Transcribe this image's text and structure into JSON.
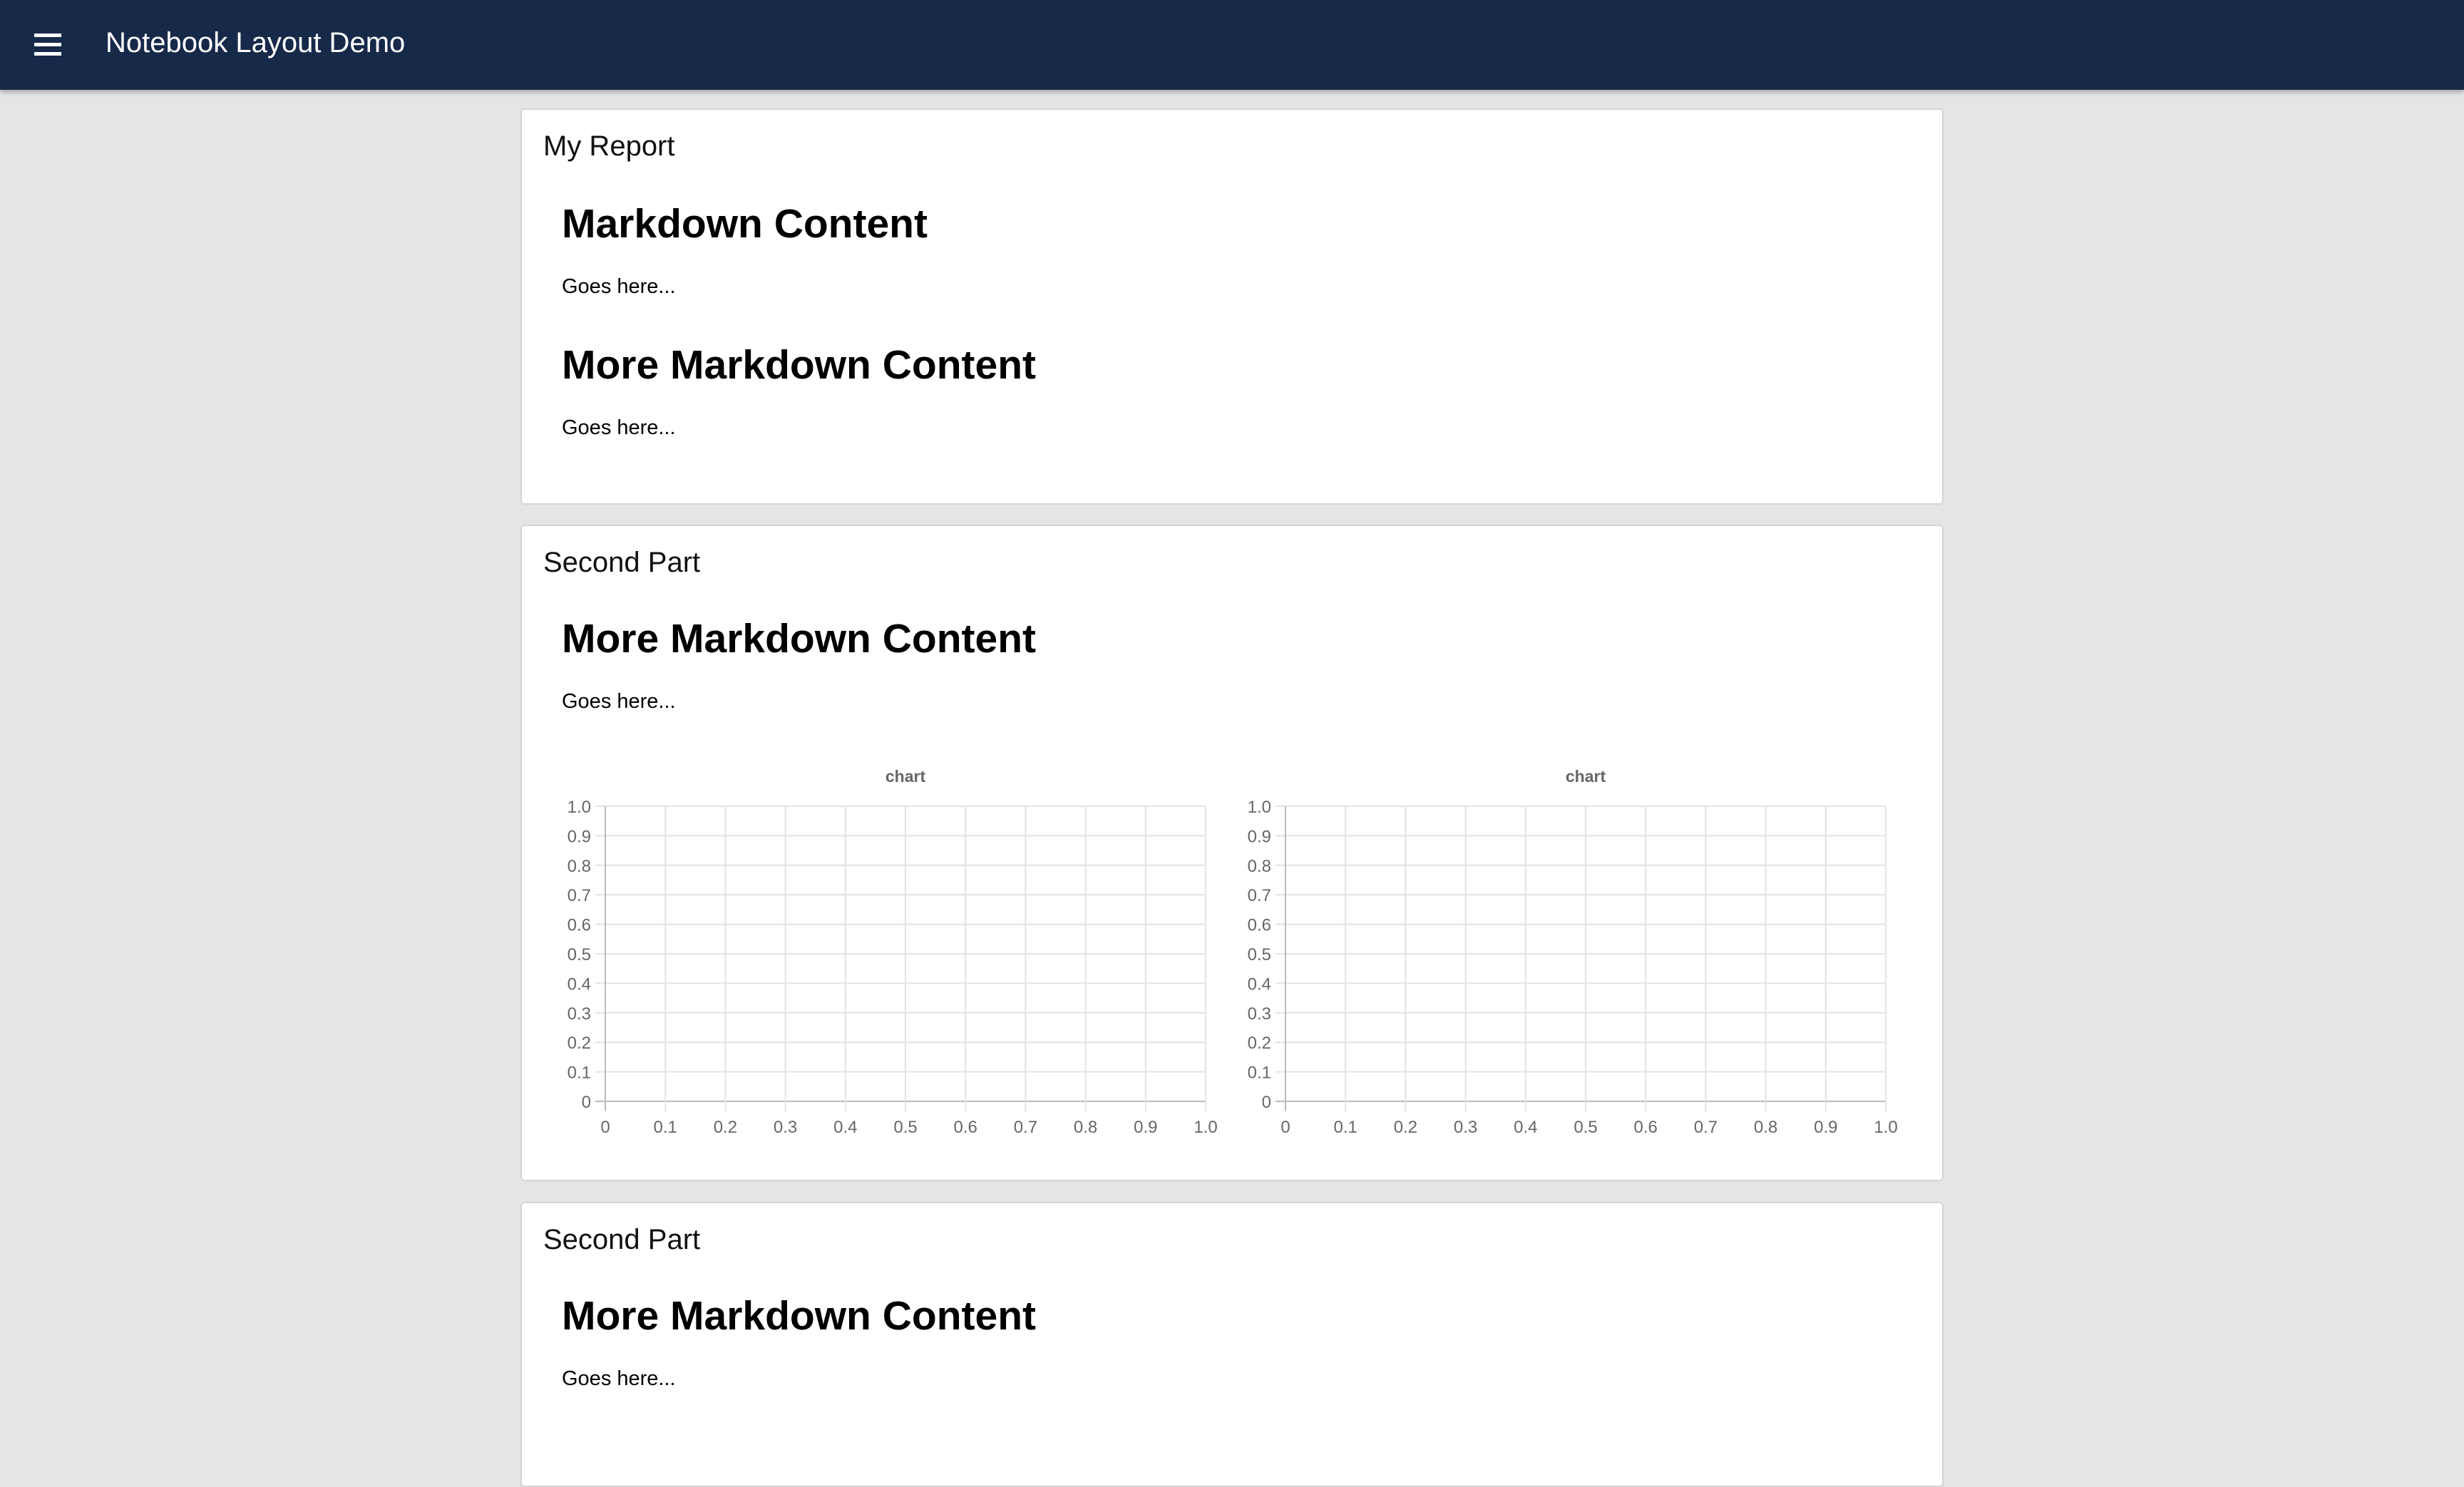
{
  "header": {
    "title": "Notebook Layout Demo",
    "menu_icon": "hamburger-menu-icon",
    "background": "#172949"
  },
  "cards": [
    {
      "title": "My Report",
      "sections": [
        {
          "heading": "Markdown Content",
          "text": "Goes here..."
        },
        {
          "heading": "More Markdown Content",
          "text": "Goes here..."
        }
      ]
    },
    {
      "title": "Second Part",
      "sections": [
        {
          "heading": "More Markdown Content",
          "text": "Goes here..."
        }
      ]
    },
    {
      "title": "Second Part",
      "sections": [
        {
          "heading": "More Markdown Content",
          "text": "Goes here..."
        }
      ]
    }
  ],
  "chart_data": [
    {
      "type": "line",
      "title": "chart",
      "series": [],
      "xlim": [
        0,
        1
      ],
      "ylim": [
        0,
        1
      ],
      "xticks": [
        "0",
        "0.1",
        "0.2",
        "0.3",
        "0.4",
        "0.5",
        "0.6",
        "0.7",
        "0.8",
        "0.9",
        "1.0"
      ],
      "yticks": [
        "0",
        "0.1",
        "0.2",
        "0.3",
        "0.4",
        "0.5",
        "0.6",
        "0.7",
        "0.8",
        "0.9",
        "1.0"
      ],
      "grid": true
    },
    {
      "type": "line",
      "title": "chart",
      "series": [],
      "xlim": [
        0,
        1
      ],
      "ylim": [
        0,
        1
      ],
      "xticks": [
        "0",
        "0.1",
        "0.2",
        "0.3",
        "0.4",
        "0.5",
        "0.6",
        "0.7",
        "0.8",
        "0.9",
        "1.0"
      ],
      "yticks": [
        "0",
        "0.1",
        "0.2",
        "0.3",
        "0.4",
        "0.5",
        "0.6",
        "0.7",
        "0.8",
        "0.9",
        "1.0"
      ],
      "grid": true
    }
  ]
}
